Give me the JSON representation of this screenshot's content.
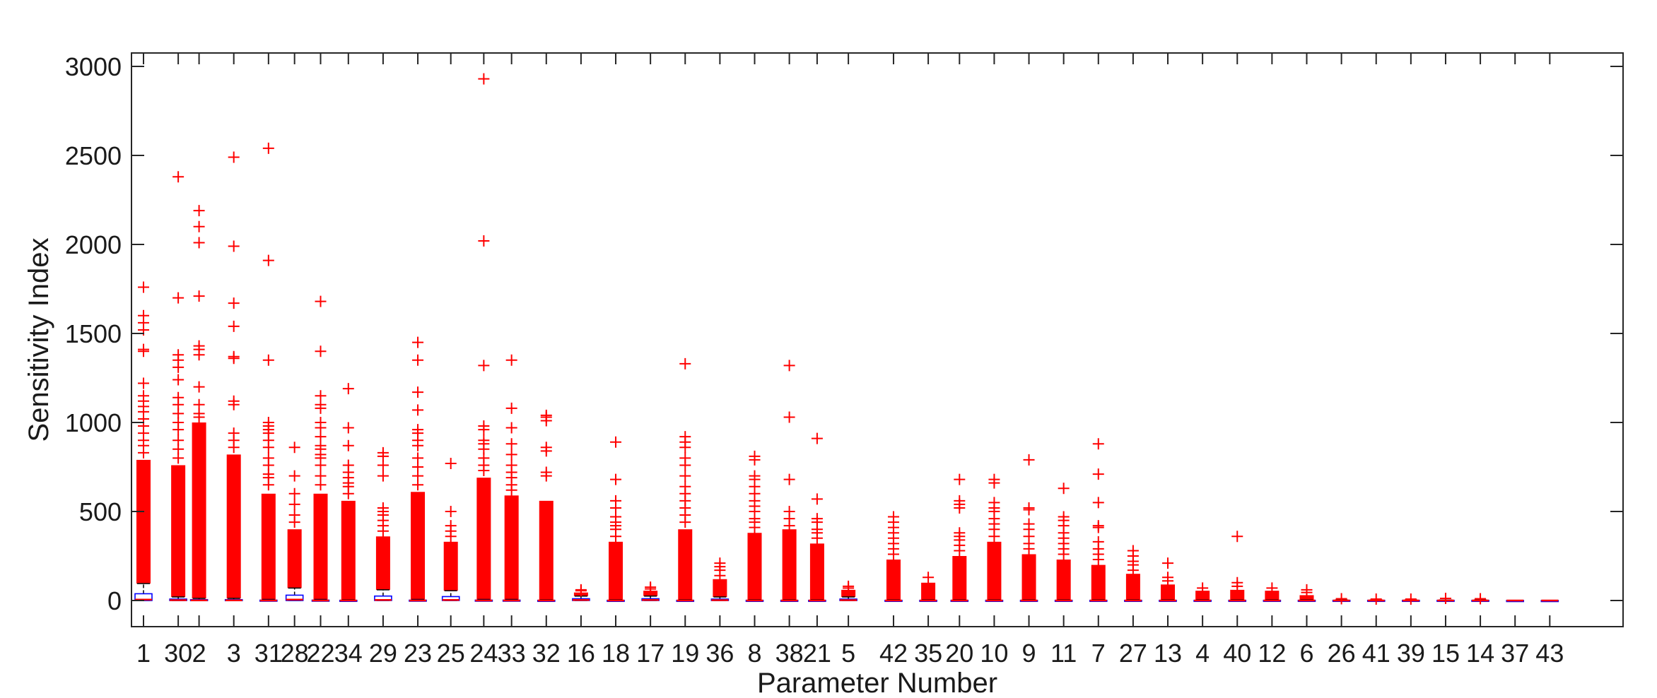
{
  "chart_data": {
    "type": "box",
    "xlabel": "Parameter Number",
    "ylabel": "Sensitivity Index",
    "ylim": [
      -150,
      3080
    ],
    "yticks": [
      0,
      500,
      1000,
      1500,
      2000,
      2500,
      3000
    ],
    "grid": false,
    "colors": {
      "outlier": "#ff0000",
      "box": "#0000ff",
      "median": "#ff0000",
      "axis": "#262626"
    },
    "categories": [
      "1",
      "30",
      "2",
      "3",
      "31",
      "28",
      "22",
      "34",
      "29",
      "23",
      "25",
      "24",
      "33",
      "32",
      "16",
      "18",
      "17",
      "19",
      "36",
      "8",
      "38",
      "21",
      "5",
      "42",
      "35",
      "20",
      "10",
      "9",
      "11",
      "7",
      "27",
      "13",
      "4",
      "40",
      "12",
      "6",
      "26",
      "41",
      "39",
      "15",
      "14",
      "37",
      "43"
    ],
    "x_positions": [
      1.0,
      2.0,
      2.6,
      3.6,
      4.6,
      5.35,
      6.1,
      6.9,
      7.9,
      8.9,
      9.85,
      10.8,
      11.6,
      12.6,
      13.6,
      14.6,
      15.6,
      16.6,
      17.6,
      18.6,
      19.6,
      20.4,
      21.3,
      22.6,
      23.6,
      24.5,
      25.5,
      26.5,
      27.5,
      28.5,
      29.5,
      30.5,
      31.5,
      32.5,
      33.5,
      34.5,
      35.5,
      36.5,
      37.5,
      38.5,
      39.5,
      40.5,
      41.5
    ],
    "series": [
      {
        "category": "1",
        "q1": 0,
        "median": 5,
        "q3": 38,
        "whisker_high": 95,
        "outlier_band_max": 790,
        "outliers": [
          830,
          870,
          900,
          940,
          980,
          1020,
          1060,
          1090,
          1120,
          1150,
          1220,
          1400,
          1410,
          1520,
          1560,
          1600,
          1760
        ]
      },
      {
        "category": "30",
        "q1": 0,
        "median": 2,
        "q3": 8,
        "whisker_high": 20,
        "outlier_band_max": 760,
        "outliers": [
          800,
          850,
          900,
          960,
          1000,
          1050,
          1100,
          1140,
          1240,
          1310,
          1350,
          1380,
          1700,
          2380
        ]
      },
      {
        "category": "2",
        "q1": 0,
        "median": 1,
        "q3": 5,
        "whisker_high": 12,
        "outlier_band_max": 1000,
        "outliers": [
          1030,
          1050,
          1100,
          1200,
          1380,
          1410,
          1430,
          1710,
          2010,
          2100,
          2190
        ]
      },
      {
        "category": "3",
        "q1": 0,
        "median": 1,
        "q3": 5,
        "whisker_high": 12,
        "outlier_band_max": 820,
        "outliers": [
          860,
          900,
          940,
          1100,
          1120,
          1360,
          1370,
          1540,
          1670,
          1990,
          2490
        ]
      },
      {
        "category": "31",
        "q1": 0,
        "median": 0,
        "q3": 2,
        "whisker_high": 6,
        "outlier_band_max": 600,
        "outliers": [
          650,
          690,
          710,
          760,
          800,
          860,
          900,
          940,
          960,
          980,
          1000,
          1350,
          1910,
          2540
        ]
      },
      {
        "category": "28",
        "q1": 0,
        "median": 5,
        "q3": 30,
        "whisker_high": 70,
        "outlier_band_max": 400,
        "outliers": [
          440,
          480,
          540,
          600,
          700,
          860
        ]
      },
      {
        "category": "22",
        "q1": 0,
        "median": 0,
        "q3": 2,
        "whisker_high": 6,
        "outlier_band_max": 600,
        "outliers": [
          650,
          700,
          760,
          800,
          820,
          850,
          870,
          920,
          970,
          1000,
          1080,
          1100,
          1150,
          1400,
          1680
        ]
      },
      {
        "category": "34",
        "q1": 0,
        "median": 0,
        "q3": 1,
        "whisker_high": 4,
        "outlier_band_max": 560,
        "outliers": [
          600,
          640,
          660,
          690,
          720,
          760,
          870,
          970,
          1190
        ]
      },
      {
        "category": "29",
        "q1": 0,
        "median": 3,
        "q3": 25,
        "whisker_high": 60,
        "outlier_band_max": 360,
        "outliers": [
          390,
          420,
          450,
          480,
          500,
          520,
          700,
          760,
          810,
          830
        ]
      },
      {
        "category": "23",
        "q1": 0,
        "median": 0,
        "q3": 2,
        "whisker_high": 6,
        "outlier_band_max": 610,
        "outliers": [
          650,
          700,
          750,
          800,
          870,
          900,
          940,
          960,
          1070,
          1170,
          1350,
          1450
        ]
      },
      {
        "category": "25",
        "q1": 0,
        "median": 3,
        "q3": 22,
        "whisker_high": 55,
        "outlier_band_max": 330,
        "outliers": [
          360,
          390,
          420,
          500,
          770
        ]
      },
      {
        "category": "24",
        "q1": 0,
        "median": 0,
        "q3": 2,
        "whisker_high": 6,
        "outlier_band_max": 690,
        "outliers": [
          730,
          760,
          800,
          850,
          880,
          900,
          960,
          980,
          1320,
          2020,
          2930
        ]
      },
      {
        "category": "33",
        "q1": 0,
        "median": 0,
        "q3": 2,
        "whisker_high": 6,
        "outlier_band_max": 590,
        "outliers": [
          620,
          650,
          690,
          720,
          760,
          820,
          880,
          970,
          1080,
          1350
        ]
      },
      {
        "category": "32",
        "q1": 0,
        "median": 0,
        "q3": 1,
        "whisker_high": 4,
        "outlier_band_max": 560,
        "outliers": [
          700,
          720,
          840,
          860,
          1010,
          1030,
          1040
        ]
      },
      {
        "category": "16",
        "q1": 0,
        "median": 3,
        "q3": 10,
        "whisker_high": 25,
        "outlier_band_max": 45,
        "outliers": [
          55,
          60
        ]
      },
      {
        "category": "18",
        "q1": 0,
        "median": 0,
        "q3": 1,
        "whisker_high": 4,
        "outlier_band_max": 330,
        "outliers": [
          360,
          400,
          420,
          440,
          470,
          520,
          560,
          680,
          890
        ]
      },
      {
        "category": "17",
        "q1": 0,
        "median": 3,
        "q3": 10,
        "whisker_high": 25,
        "outlier_band_max": 55,
        "outliers": [
          65,
          75
        ]
      },
      {
        "category": "19",
        "q1": 0,
        "median": 0,
        "q3": 1,
        "whisker_high": 4,
        "outlier_band_max": 400,
        "outliers": [
          440,
          480,
          520,
          560,
          600,
          640,
          700,
          760,
          800,
          860,
          890,
          920,
          1330
        ]
      },
      {
        "category": "36",
        "q1": 0,
        "median": 2,
        "q3": 8,
        "whisker_high": 20,
        "outlier_band_max": 120,
        "outliers": [
          140,
          170,
          190,
          210
        ]
      },
      {
        "category": "8",
        "q1": 0,
        "median": 0,
        "q3": 1,
        "whisker_high": 4,
        "outlier_band_max": 380,
        "outliers": [
          410,
          440,
          460,
          500,
          530,
          560,
          600,
          640,
          680,
          700,
          790,
          810
        ]
      },
      {
        "category": "38",
        "q1": 0,
        "median": 0,
        "q3": 1,
        "whisker_high": 4,
        "outlier_band_max": 400,
        "outliers": [
          420,
          460,
          500,
          680,
          1030,
          1320
        ]
      },
      {
        "category": "21",
        "q1": 0,
        "median": 0,
        "q3": 1,
        "whisker_high": 4,
        "outlier_band_max": 320,
        "outliers": [
          350,
          380,
          400,
          440,
          460,
          570,
          910
        ]
      },
      {
        "category": "5",
        "q1": 0,
        "median": 2,
        "q3": 8,
        "whisker_high": 20,
        "outlier_band_max": 60,
        "outliers": [
          70,
          80
        ]
      },
      {
        "category": "42",
        "q1": 0,
        "median": 0,
        "q3": 1,
        "whisker_high": 4,
        "outlier_band_max": 230,
        "outliers": [
          260,
          290,
          320,
          350,
          380,
          410,
          440,
          470
        ]
      },
      {
        "category": "35",
        "q1": 0,
        "median": 0,
        "q3": 1,
        "whisker_high": 4,
        "outlier_band_max": 100,
        "outliers": [
          130
        ]
      },
      {
        "category": "20",
        "q1": 0,
        "median": 0,
        "q3": 1,
        "whisker_high": 4,
        "outlier_band_max": 250,
        "outliers": [
          280,
          310,
          340,
          360,
          380,
          520,
          540,
          560,
          680
        ]
      },
      {
        "category": "10",
        "q1": 0,
        "median": 0,
        "q3": 1,
        "whisker_high": 4,
        "outlier_band_max": 330,
        "outliers": [
          360,
          400,
          430,
          460,
          500,
          520,
          550,
          660,
          680
        ]
      },
      {
        "category": "9",
        "q1": 0,
        "median": 0,
        "q3": 1,
        "whisker_high": 4,
        "outlier_band_max": 260,
        "outliers": [
          290,
          320,
          360,
          400,
          430,
          510,
          520,
          790
        ]
      },
      {
        "category": "11",
        "q1": 0,
        "median": 0,
        "q3": 1,
        "whisker_high": 4,
        "outlier_band_max": 230,
        "outliers": [
          260,
          290,
          320,
          350,
          380,
          420,
          450,
          470,
          630
        ]
      },
      {
        "category": "7",
        "q1": 0,
        "median": 0,
        "q3": 1,
        "whisker_high": 4,
        "outlier_band_max": 200,
        "outliers": [
          230,
          260,
          290,
          330,
          410,
          420,
          550,
          710,
          880
        ]
      },
      {
        "category": "27",
        "q1": 0,
        "median": 0,
        "q3": 1,
        "whisker_high": 4,
        "outlier_band_max": 150,
        "outliers": [
          170,
          200,
          220,
          250,
          280
        ]
      },
      {
        "category": "13",
        "q1": 0,
        "median": 0,
        "q3": 1,
        "whisker_high": 4,
        "outlier_band_max": 90,
        "outliers": [
          110,
          130,
          210
        ]
      },
      {
        "category": "4",
        "q1": 0,
        "median": 0,
        "q3": 1,
        "whisker_high": 4,
        "outlier_band_max": 55,
        "outliers": [
          70
        ]
      },
      {
        "category": "40",
        "q1": 0,
        "median": 0,
        "q3": 1,
        "whisker_high": 4,
        "outlier_band_max": 60,
        "outliers": [
          80,
          100,
          360
        ]
      },
      {
        "category": "12",
        "q1": 0,
        "median": 0,
        "q3": 1,
        "whisker_high": 4,
        "outlier_band_max": 55,
        "outliers": [
          70
        ]
      },
      {
        "category": "6",
        "q1": 0,
        "median": 0,
        "q3": 1,
        "whisker_high": 4,
        "outlier_band_max": 30,
        "outliers": [
          45,
          60
        ]
      },
      {
        "category": "26",
        "q1": 0,
        "median": 0,
        "q3": 1,
        "whisker_high": 3,
        "outlier_band_max": 5,
        "outliers": [
          10
        ]
      },
      {
        "category": "41",
        "q1": 0,
        "median": 0,
        "q3": 1,
        "whisker_high": 3,
        "outlier_band_max": 4,
        "outliers": [
          8
        ]
      },
      {
        "category": "39",
        "q1": 0,
        "median": 0,
        "q3": 1,
        "whisker_high": 3,
        "outlier_band_max": 4,
        "outliers": [
          8
        ]
      },
      {
        "category": "15",
        "q1": 0,
        "median": 0,
        "q3": 1,
        "whisker_high": 3,
        "outlier_band_max": 6,
        "outliers": [
          12
        ]
      },
      {
        "category": "14",
        "q1": 0,
        "median": 0,
        "q3": 1,
        "whisker_high": 3,
        "outlier_band_max": 5,
        "outliers": [
          10
        ]
      },
      {
        "category": "37",
        "q1": 0,
        "median": 0,
        "q3": 0,
        "whisker_high": 1,
        "outlier_band_max": 0,
        "outliers": []
      },
      {
        "category": "43",
        "q1": 0,
        "median": 0,
        "q3": 0,
        "whisker_high": 1,
        "outlier_band_max": 0,
        "outliers": []
      }
    ]
  }
}
